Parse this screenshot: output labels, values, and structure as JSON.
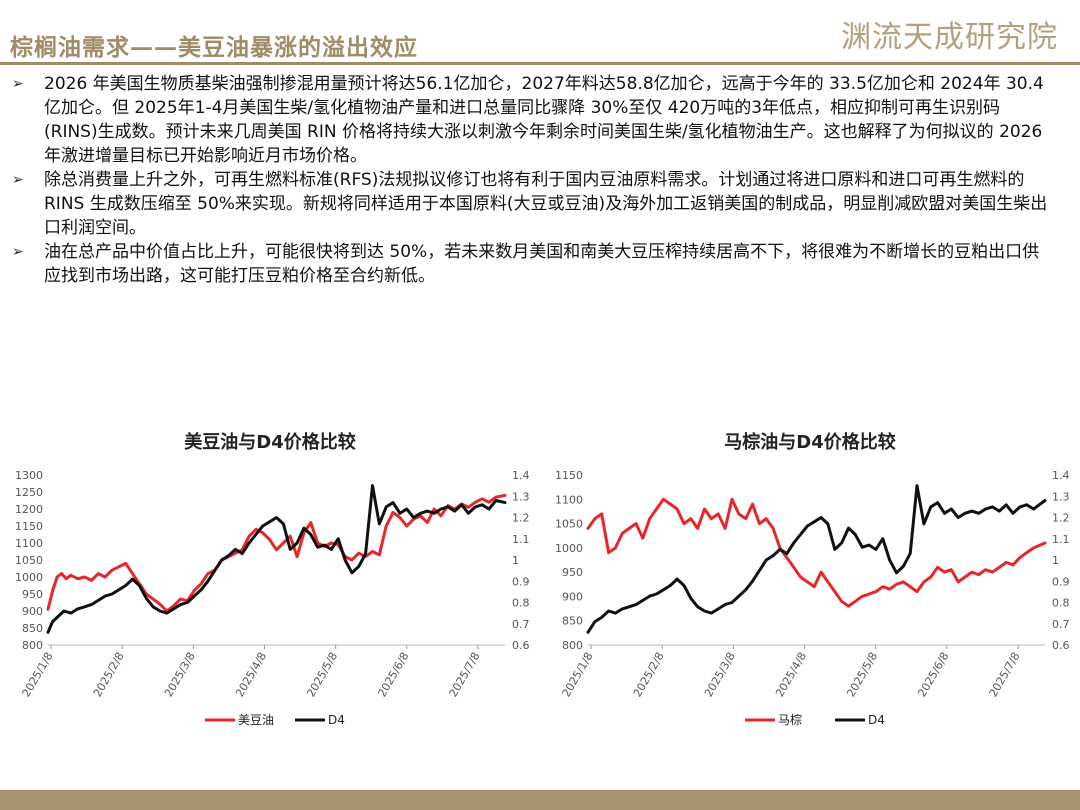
{
  "header": {
    "title": "棕榈油需求——美豆油暴涨的溢出效应",
    "logo": "渊流天成研究院"
  },
  "bullets": [
    "2026 年美国生物质基柴油强制掺混用量预计将达56.1亿加仑，2027年料达58.8亿加仑，远高于今年的 33.5亿加仑和 2024年 30.4亿加仑。但 2025年1-4月美国生柴/氢化植物油产量和进口总量同比骤降 30%至仅 420万吨的3年低点，相应抑制可再生识别码(RINS)生成数。预计未来几周美国 RIN 价格将持续大涨以刺激今年剩余时间美国生柴/氢化植物油生产。这也解释了为何拟议的 2026年激进增量目标已开始影响近月市场价格。",
    "除总消费量上升之外，可再生燃料标准(RFS)法规拟议修订也将有利于国内豆油原料需求。计划通过将进口原料和进口可再生燃料的 RINS 生成数压缩至 50%来实现。新规将同样适用于本国原料(大豆或豆油)及海外加工返销美国的制成品，明显削减欧盟对美国生柴出口利润空间。",
    "油在总产品中价值占比上升，可能很快将到达 50%，若未来数月美国和南美大豆压榨持续居高不下，将很难为不断增长的豆粕出口供应找到市场出路，这可能打压豆粕价格至合约新低。"
  ],
  "colors": {
    "red": "#e8262a",
    "black": "#111111",
    "accent": "#a08a68"
  },
  "chart_data": [
    {
      "type": "line",
      "title": "美豆油与D4价格比较",
      "x_tick_labels": [
        "2025/1/8",
        "2025/2/8",
        "2025/3/8",
        "2025/4/8",
        "2025/5/8",
        "2025/6/8",
        "2025/7/8"
      ],
      "y_left_ticks": [
        "800",
        "850",
        "900",
        "950",
        "1000",
        "1050",
        "1100",
        "1150",
        "1200",
        "1250",
        "1300"
      ],
      "y_right_ticks": [
        "0.6",
        "0.7",
        "0.8",
        "0.9",
        "1",
        "1.1",
        "1.2",
        "1.3",
        "1.4"
      ],
      "ylim_left": [
        800,
        1300
      ],
      "ylim_right": [
        0.6,
        1.4
      ],
      "series": [
        {
          "name": "美豆油",
          "axis": "left",
          "color": "#e8262a",
          "x": [
            0,
            2,
            4,
            6,
            8,
            10,
            13,
            16,
            19,
            22,
            25,
            28,
            31,
            34,
            37,
            40,
            43,
            46,
            49,
            52,
            55,
            58,
            61,
            64,
            67,
            70,
            73,
            76,
            79,
            82,
            85,
            88,
            91,
            94,
            97,
            100,
            103,
            106,
            109,
            112,
            115,
            118,
            121,
            124,
            127,
            130,
            133,
            136,
            139,
            142,
            145,
            148,
            151,
            154,
            157,
            160,
            163,
            166,
            169,
            172,
            175,
            178,
            181,
            184,
            187,
            190,
            193,
            196,
            200
          ],
          "values": [
            905,
            960,
            1000,
            1010,
            995,
            1005,
            995,
            1000,
            990,
            1010,
            1000,
            1020,
            1030,
            1040,
            1010,
            980,
            950,
            935,
            920,
            900,
            915,
            935,
            930,
            960,
            980,
            1010,
            1020,
            1050,
            1060,
            1070,
            1080,
            1120,
            1140,
            1130,
            1110,
            1080,
            1100,
            1120,
            1060,
            1130,
            1160,
            1100,
            1090,
            1100,
            1095,
            1060,
            1050,
            1070,
            1060,
            1075,
            1065,
            1150,
            1190,
            1175,
            1150,
            1170,
            1180,
            1160,
            1200,
            1180,
            1210,
            1200,
            1215,
            1205,
            1220,
            1230,
            1220,
            1235,
            1240
          ]
        },
        {
          "name": "D4",
          "axis": "right",
          "color": "#111111",
          "x": [
            0,
            2,
            4,
            7,
            10,
            13,
            16,
            19,
            22,
            25,
            28,
            31,
            34,
            37,
            40,
            43,
            46,
            49,
            52,
            55,
            58,
            61,
            64,
            67,
            70,
            73,
            76,
            79,
            82,
            85,
            88,
            91,
            94,
            97,
            100,
            103,
            106,
            109,
            112,
            115,
            118,
            121,
            124,
            127,
            130,
            133,
            136,
            139,
            142,
            145,
            148,
            151,
            154,
            157,
            160,
            163,
            166,
            169,
            172,
            175,
            178,
            181,
            184,
            187,
            190,
            193,
            196,
            200
          ],
          "values": [
            0.66,
            0.71,
            0.73,
            0.76,
            0.75,
            0.77,
            0.78,
            0.79,
            0.81,
            0.83,
            0.84,
            0.86,
            0.88,
            0.91,
            0.88,
            0.82,
            0.78,
            0.76,
            0.75,
            0.77,
            0.79,
            0.8,
            0.83,
            0.86,
            0.9,
            0.95,
            1.0,
            1.02,
            1.05,
            1.03,
            1.08,
            1.12,
            1.16,
            1.18,
            1.2,
            1.17,
            1.05,
            1.08,
            1.15,
            1.12,
            1.06,
            1.07,
            1.05,
            1.1,
            1.0,
            0.94,
            0.97,
            1.03,
            1.35,
            1.17,
            1.25,
            1.27,
            1.22,
            1.24,
            1.2,
            1.22,
            1.23,
            1.22,
            1.24,
            1.25,
            1.23,
            1.26,
            1.22,
            1.25,
            1.26,
            1.24,
            1.28,
            1.27
          ]
        }
      ]
    },
    {
      "type": "line",
      "title": "马棕油与D4价格比较",
      "x_tick_labels": [
        "2025/1/8",
        "2025/2/8",
        "2025/3/8",
        "2025/4/8",
        "2025/5/8",
        "2025/6/8",
        "2025/7/8"
      ],
      "y_left_ticks": [
        "800",
        "850",
        "900",
        "950",
        "1000",
        "1050",
        "1100",
        "1150"
      ],
      "y_right_ticks": [
        "0.6",
        "0.7",
        "0.8",
        "0.9",
        "1",
        "1.1",
        "1.2",
        "1.3",
        "1.4"
      ],
      "ylim_left": [
        800,
        1150
      ],
      "ylim_right": [
        0.6,
        1.4
      ],
      "series": [
        {
          "name": "马棕",
          "axis": "left",
          "color": "#e8262a",
          "x": [
            0,
            3,
            6,
            9,
            12,
            15,
            18,
            21,
            24,
            27,
            30,
            33,
            36,
            39,
            42,
            45,
            48,
            51,
            54,
            57,
            60,
            63,
            66,
            69,
            72,
            75,
            78,
            81,
            84,
            87,
            90,
            93,
            96,
            99,
            102,
            105,
            108,
            111,
            114,
            117,
            120,
            123,
            126,
            129,
            132,
            135,
            138,
            141,
            144,
            147,
            150,
            153,
            156,
            159,
            162,
            165,
            168,
            171,
            174,
            177,
            180,
            183,
            186,
            189,
            192,
            195,
            200
          ],
          "values": [
            1040,
            1060,
            1070,
            990,
            1000,
            1030,
            1040,
            1050,
            1020,
            1060,
            1080,
            1100,
            1090,
            1080,
            1050,
            1060,
            1040,
            1080,
            1060,
            1070,
            1040,
            1100,
            1070,
            1060,
            1090,
            1050,
            1060,
            1040,
            1000,
            980,
            960,
            940,
            930,
            920,
            950,
            930,
            910,
            890,
            880,
            890,
            900,
            905,
            910,
            920,
            915,
            925,
            930,
            920,
            910,
            930,
            940,
            960,
            950,
            955,
            930,
            940,
            950,
            945,
            955,
            950,
            960,
            970,
            965,
            980,
            990,
            1000,
            1010
          ]
        },
        {
          "name": "D4",
          "axis": "right",
          "color": "#111111",
          "x": [
            0,
            3,
            6,
            9,
            12,
            15,
            18,
            21,
            24,
            27,
            30,
            33,
            36,
            39,
            42,
            45,
            48,
            51,
            54,
            57,
            60,
            63,
            66,
            69,
            72,
            75,
            78,
            81,
            84,
            87,
            90,
            93,
            96,
            99,
            102,
            105,
            108,
            111,
            114,
            117,
            120,
            123,
            126,
            129,
            132,
            135,
            138,
            141,
            144,
            147,
            150,
            153,
            156,
            159,
            162,
            165,
            168,
            171,
            174,
            177,
            180,
            183,
            186,
            189,
            192,
            195,
            200
          ],
          "values": [
            0.66,
            0.71,
            0.73,
            0.76,
            0.75,
            0.77,
            0.78,
            0.79,
            0.81,
            0.83,
            0.84,
            0.86,
            0.88,
            0.91,
            0.88,
            0.82,
            0.78,
            0.76,
            0.75,
            0.77,
            0.79,
            0.8,
            0.83,
            0.86,
            0.9,
            0.95,
            1.0,
            1.02,
            1.05,
            1.03,
            1.08,
            1.12,
            1.16,
            1.18,
            1.2,
            1.17,
            1.05,
            1.08,
            1.15,
            1.12,
            1.06,
            1.07,
            1.05,
            1.1,
            1.0,
            0.94,
            0.97,
            1.03,
            1.35,
            1.17,
            1.25,
            1.27,
            1.22,
            1.24,
            1.2,
            1.22,
            1.23,
            1.22,
            1.24,
            1.25,
            1.23,
            1.26,
            1.22,
            1.25,
            1.26,
            1.24,
            1.28
          ]
        }
      ]
    }
  ]
}
